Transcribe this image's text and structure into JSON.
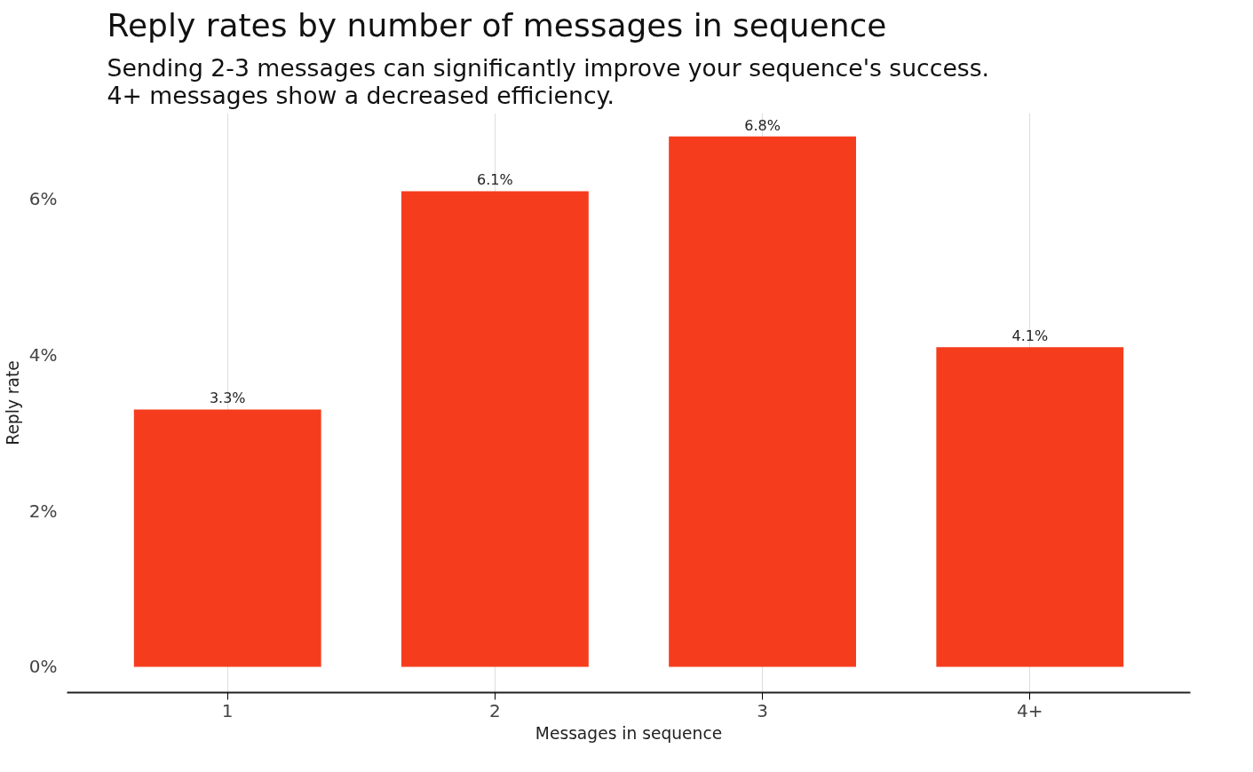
{
  "chart_data": {
    "type": "bar",
    "title": "Reply rates by number of messages in sequence",
    "subtitle": "Sending 2-3 messages can significantly improve your sequence's success.\n4+ messages show a decreased efficiency.",
    "xlabel": "Messages in sequence",
    "ylabel": "Reply rate",
    "categories": [
      "1",
      "2",
      "3",
      "4+"
    ],
    "values": [
      3.3,
      6.1,
      6.8,
      4.1
    ],
    "value_labels": [
      "3.3%",
      "6.1%",
      "6.8%",
      "4.1%"
    ],
    "color": "#f53d1e",
    "ylim": [
      -0.33,
      7.1
    ],
    "yticks": [
      {
        "value": 0,
        "label": "0%"
      },
      {
        "value": 2,
        "label": "2%"
      },
      {
        "value": 4,
        "label": "4%"
      },
      {
        "value": 6,
        "label": "6%"
      }
    ],
    "grid": "x"
  }
}
